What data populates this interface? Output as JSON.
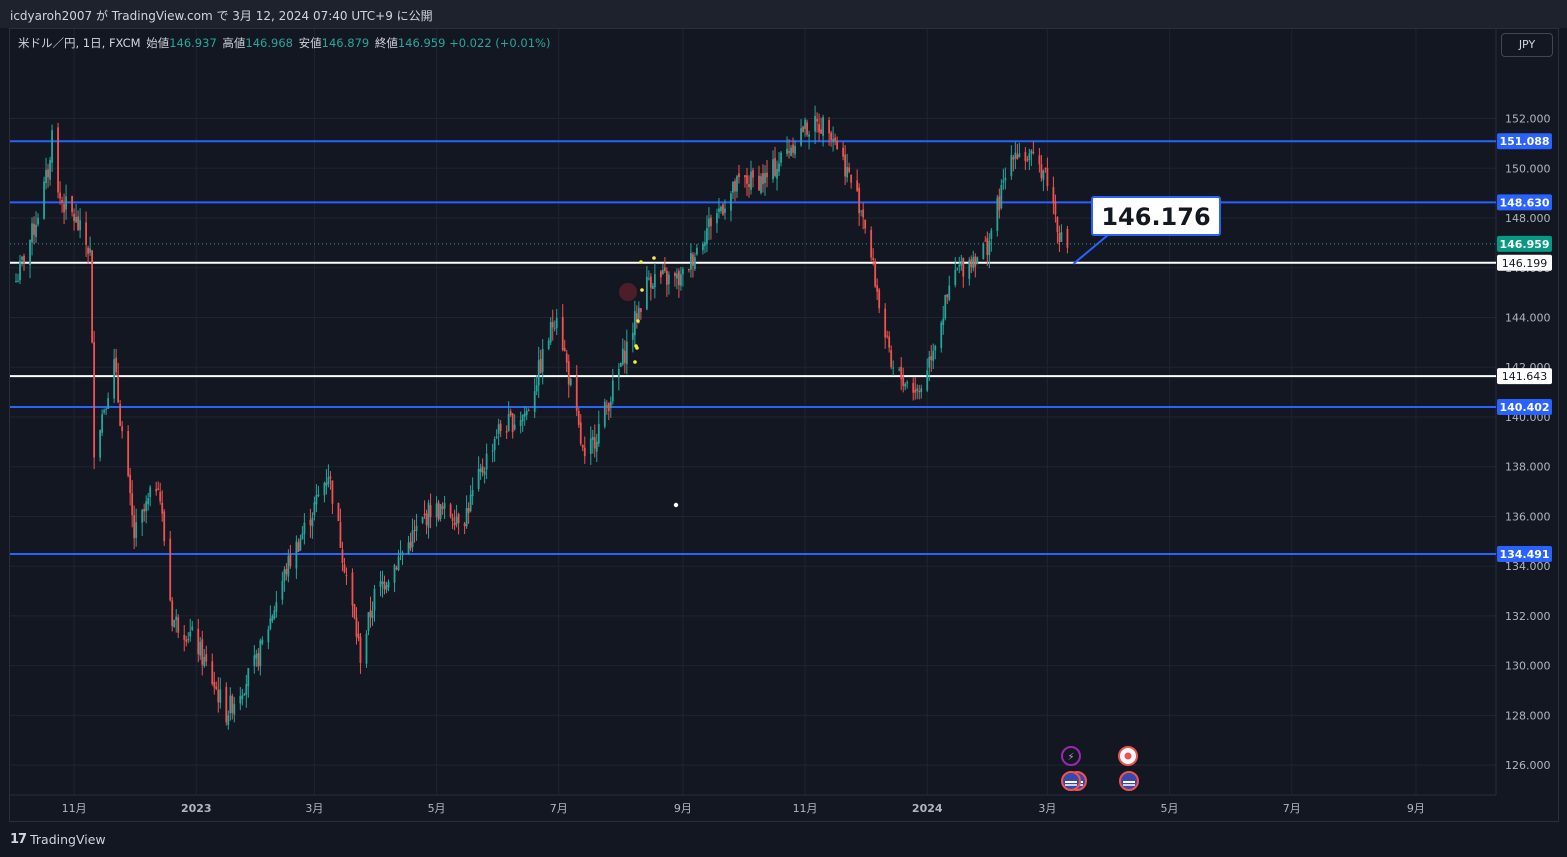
{
  "header": {
    "published_text": "icdyaroh2007 が TradingView.com で 3月 12, 2024 07:40 UTC+9 に公開"
  },
  "legend": {
    "symbol": "米ドル／円, 1日, FXCM",
    "open_label": "始値",
    "open": "146.937",
    "high_label": "高値",
    "high": "146.968",
    "low_label": "安値",
    "low": "146.879",
    "close_label": "終値",
    "close": "146.959",
    "change": "+0.022 (+0.01%)"
  },
  "currency_button": "JPY",
  "footer": {
    "logo_text": "TradingView"
  },
  "colors": {
    "background": "#131722",
    "up": "#26a69a",
    "down": "#ef5350",
    "blue_line": "#2962ff",
    "white_line": "#ffffff",
    "grid": "#1f2430"
  },
  "chart_data": {
    "type": "candlestick",
    "symbol": "USDJPY",
    "timeframe": "1D",
    "ylim": [
      124.8,
      155.6
    ],
    "y_ticks": [
      126,
      128,
      130,
      132,
      134,
      136,
      138,
      140,
      142,
      144,
      146,
      148,
      150,
      152
    ],
    "y_tick_labels": [
      "126.000",
      "128.000",
      "130.000",
      "132.000",
      "134.000",
      "136.000",
      "138.000",
      "140.000",
      "142.000",
      "144.000",
      "146.000",
      "148.000",
      "150.000",
      "152.000"
    ],
    "x_labels": [
      "11月",
      "2023",
      "3月",
      "5月",
      "7月",
      "9月",
      "11月",
      "2024",
      "3月",
      "5月",
      "7月",
      "9月"
    ],
    "last_price": "146.959",
    "horizontal_lines": [
      {
        "label": "151.088",
        "value": 151.088,
        "color": "#2962ff"
      },
      {
        "label": "148.630",
        "value": 148.63,
        "color": "#2962ff"
      },
      {
        "label": "146.199",
        "value": 146.199,
        "color": "#ffffff"
      },
      {
        "label": "141.643",
        "value": 141.643,
        "color": "#ffffff"
      },
      {
        "label": "140.402",
        "value": 140.402,
        "color": "#2962ff"
      },
      {
        "label": "134.491",
        "value": 134.491,
        "color": "#2962ff"
      }
    ],
    "callout": {
      "text": "146.176",
      "value": 146.176
    },
    "price_path": [
      [
        "2022-10-01",
        145.0
      ],
      [
        "2022-10-12",
        147.6
      ],
      [
        "2022-10-20",
        150.2
      ],
      [
        "2022-10-21",
        151.9
      ],
      [
        "2022-10-24",
        148.9
      ],
      [
        "2022-11-01",
        148.0
      ],
      [
        "2022-11-09",
        146.6
      ],
      [
        "2022-11-11",
        138.8
      ],
      [
        "2022-11-21",
        142.1
      ],
      [
        "2022-12-01",
        135.2
      ],
      [
        "2022-12-13",
        137.5
      ],
      [
        "2022-12-20",
        131.9
      ],
      [
        "2022-12-31",
        131.1
      ],
      [
        "2023-01-16",
        128.1
      ],
      [
        "2023-01-31",
        130.1
      ],
      [
        "2023-02-15",
        133.9
      ],
      [
        "2023-02-28",
        136.2
      ],
      [
        "2023-03-08",
        137.8
      ],
      [
        "2023-03-24",
        130.4
      ],
      [
        "2023-03-31",
        132.8
      ],
      [
        "2023-04-28",
        136.3
      ],
      [
        "2023-05-15",
        136.0
      ],
      [
        "2023-05-31",
        139.4
      ],
      [
        "2023-06-15",
        140.2
      ],
      [
        "2023-06-30",
        144.3
      ],
      [
        "2023-07-14",
        138.1
      ],
      [
        "2023-07-28",
        141.1
      ],
      [
        "2023-08-15",
        145.6
      ],
      [
        "2023-08-31",
        145.5
      ],
      [
        "2023-09-15",
        147.9
      ],
      [
        "2023-09-29",
        149.4
      ],
      [
        "2023-10-13",
        149.6
      ],
      [
        "2023-10-31",
        151.6
      ],
      [
        "2023-11-13",
        151.8
      ],
      [
        "2023-11-30",
        148.2
      ],
      [
        "2023-12-14",
        141.9
      ],
      [
        "2023-12-28",
        141.0
      ],
      [
        "2024-01-15",
        145.8
      ],
      [
        "2024-01-31",
        146.9
      ],
      [
        "2024-02-13",
        150.8
      ],
      [
        "2024-02-29",
        149.9
      ],
      [
        "2024-03-08",
        147.1
      ],
      [
        "2024-03-11",
        146.9
      ]
    ]
  }
}
